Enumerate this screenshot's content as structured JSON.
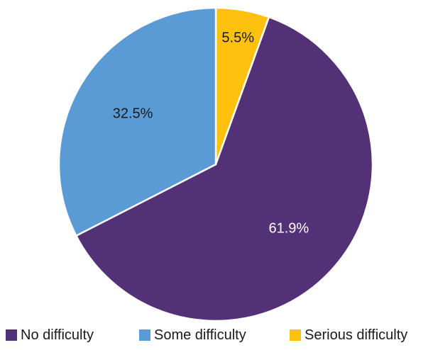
{
  "chart_data": {
    "type": "pie",
    "title": "",
    "legend_position": "bottom",
    "slices": [
      {
        "label": "No difficulty",
        "value": 61.9,
        "display": "61.9%",
        "color": "#533177",
        "label_color": "#ffffff"
      },
      {
        "label": "Some difficulty",
        "value": 32.5,
        "display": "32.5%",
        "color": "#5b9bd5",
        "label_color": "#1a1a1a"
      },
      {
        "label": "Serious difficulty",
        "value": 5.5,
        "display": "5.5%",
        "color": "#fec20e",
        "label_color": "#1a1a1a"
      }
    ]
  }
}
